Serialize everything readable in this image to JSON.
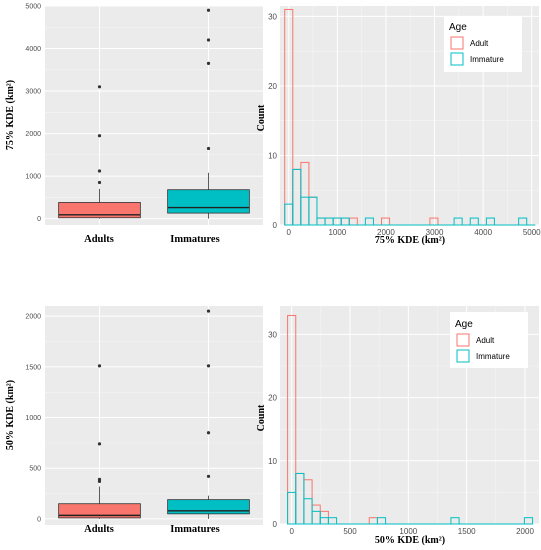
{
  "colors": {
    "panel_bg": "#ebebeb",
    "grid_major": "#ffffff",
    "adult": "#f8766d",
    "immature": "#00bfc4",
    "outlier": "#333333"
  },
  "chart_data": [
    {
      "id": "box75",
      "type": "boxplot",
      "ylabel": "75% KDE (km²)",
      "categories": [
        "Adults",
        "Immatures"
      ],
      "ylim": [
        -150,
        5000
      ],
      "yticks": [
        0,
        1000,
        2000,
        3000,
        4000,
        5000
      ],
      "series": [
        {
          "category": "Adults",
          "q1": 20,
          "median": 90,
          "q3": 380,
          "whisker_low": 0,
          "whisker_high": 700,
          "outliers": [
            850,
            1120,
            1950,
            3100
          ],
          "color": "#f8766d"
        },
        {
          "category": "Immatures",
          "q1": 130,
          "median": 260,
          "q3": 680,
          "whisker_low": 0,
          "whisker_high": 1080,
          "outliers": [
            1650,
            3650,
            4200,
            4900
          ],
          "color": "#00bfc4"
        }
      ],
      "grid": true
    },
    {
      "id": "hist75",
      "type": "histogram",
      "xlabel": "75% KDE (km²)",
      "ylabel": "Count",
      "xlim": [
        -180,
        5150
      ],
      "ylim": [
        0,
        31.5
      ],
      "xticks": [
        0,
        1000,
        2000,
        3000,
        4000,
        5000
      ],
      "yticks": [
        0,
        10,
        20,
        30
      ],
      "binwidth": 166,
      "bin_starts": [
        -83,
        83,
        249,
        415,
        581,
        747,
        913,
        1079,
        1245,
        1411,
        1577,
        1743,
        1909,
        2075,
        2241,
        2407,
        2573,
        2739,
        2905,
        3071,
        3237,
        3403,
        3569,
        3735,
        3901,
        4067,
        4233,
        4399,
        4565,
        4731,
        4897
      ],
      "series": [
        {
          "name": "Adult",
          "color": "#f8766d",
          "counts": [
            31,
            8,
            9,
            4,
            1,
            1,
            1,
            1,
            1,
            0,
            0,
            0,
            1,
            0,
            0,
            0,
            0,
            0,
            1,
            0,
            0,
            0,
            0,
            0,
            0,
            0,
            0,
            0,
            0,
            0,
            0
          ]
        },
        {
          "name": "Immature",
          "color": "#00bfc4",
          "counts": [
            3,
            8,
            4,
            4,
            1,
            1,
            1,
            1,
            0,
            0,
            1,
            0,
            0,
            0,
            0,
            0,
            0,
            0,
            0,
            0,
            0,
            1,
            0,
            1,
            0,
            1,
            0,
            0,
            0,
            1,
            0
          ]
        }
      ],
      "legend": {
        "title": "Age",
        "position": "top-right"
      },
      "grid": true
    },
    {
      "id": "box50",
      "type": "boxplot",
      "ylabel": "50% KDE (km²)",
      "categories": [
        "Adults",
        "Immatures"
      ],
      "ylim": [
        -60,
        2100
      ],
      "yticks": [
        0,
        500,
        1000,
        1500,
        2000
      ],
      "series": [
        {
          "category": "Adults",
          "q1": 10,
          "median": 35,
          "q3": 150,
          "whisker_low": 0,
          "whisker_high": 320,
          "outliers": [
            370,
            390,
            740,
            1510
          ],
          "color": "#f8766d"
        },
        {
          "category": "Immatures",
          "q1": 50,
          "median": 80,
          "q3": 190,
          "whisker_low": 0,
          "whisker_high": 230,
          "outliers": [
            420,
            850,
            1510,
            2050
          ],
          "color": "#00bfc4"
        }
      ],
      "grid": true
    },
    {
      "id": "hist50",
      "type": "histogram",
      "xlabel": "50% KDE (km²)",
      "ylabel": "Count",
      "xlim": [
        -100,
        2120
      ],
      "ylim": [
        0,
        34.5
      ],
      "xticks": [
        0,
        500,
        1000,
        1500,
        2000
      ],
      "yticks": [
        0,
        10,
        20,
        30
      ],
      "binwidth": 70,
      "bin_starts": [
        -35,
        35,
        105,
        175,
        245,
        315,
        385,
        455,
        525,
        595,
        665,
        735,
        805,
        875,
        945,
        1015,
        1085,
        1155,
        1225,
        1295,
        1365,
        1435,
        1505,
        1575,
        1645,
        1715,
        1785,
        1855,
        1925,
        1995
      ],
      "series": [
        {
          "name": "Adult",
          "color": "#f8766d",
          "counts": [
            33,
            8,
            7,
            3,
            2,
            0,
            0,
            0,
            0,
            0,
            1,
            0,
            0,
            0,
            0,
            0,
            0,
            0,
            0,
            0,
            0,
            0,
            0,
            0,
            0,
            0,
            0,
            0,
            0,
            0
          ]
        },
        {
          "name": "Immature",
          "color": "#00bfc4",
          "counts": [
            5,
            8,
            4,
            2,
            1,
            1,
            0,
            0,
            0,
            0,
            0,
            1,
            0,
            0,
            0,
            0,
            0,
            0,
            0,
            0,
            1,
            0,
            0,
            0,
            0,
            0,
            0,
            0,
            0,
            1
          ]
        }
      ],
      "legend": {
        "title": "Age",
        "position": "top-right"
      },
      "grid": true
    }
  ]
}
